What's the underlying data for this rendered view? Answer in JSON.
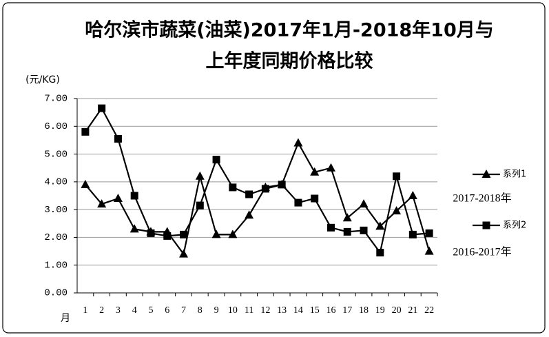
{
  "chart_data": {
    "type": "line",
    "title": [
      "哈尔滨市蔬菜(油菜)2017年1月-2018年10月与",
      "上年度同期价格比较"
    ],
    "y_label": "(元/KG)",
    "x_label": "月",
    "categories": [
      "1",
      "2",
      "3",
      "4",
      "5",
      "6",
      "7",
      "8",
      "9",
      "10",
      "11",
      "12",
      "13",
      "14",
      "15",
      "16",
      "17",
      "18",
      "19",
      "20",
      "21",
      "22"
    ],
    "series": [
      {
        "name": "系列1",
        "color": "#000000",
        "marker": "triangle",
        "annotation": "2017-2018年",
        "values": [
          3.9,
          3.2,
          3.4,
          2.3,
          2.2,
          2.2,
          1.4,
          4.2,
          2.1,
          2.1,
          2.8,
          3.8,
          3.9,
          5.4,
          4.35,
          4.5,
          2.7,
          3.2,
          2.4,
          2.95,
          3.5,
          1.5
        ]
      },
      {
        "name": "系列2",
        "color": "#000000",
        "marker": "square",
        "annotation": "2016-2017年",
        "values": [
          5.8,
          6.65,
          5.55,
          3.5,
          2.15,
          2.05,
          2.1,
          3.15,
          4.8,
          3.8,
          3.55,
          3.75,
          3.9,
          3.25,
          3.4,
          2.35,
          2.2,
          2.25,
          1.45,
          4.2,
          2.1,
          2.15
        ]
      }
    ],
    "ylim": [
      0,
      7
    ],
    "yticks": [
      {
        "value": 0,
        "label": "0.00"
      },
      {
        "value": 1,
        "label": "1.00"
      },
      {
        "value": 2,
        "label": "2.00"
      },
      {
        "value": 3,
        "label": "3.00"
      },
      {
        "value": 4,
        "label": "4.00"
      },
      {
        "value": 5,
        "label": "5.00"
      },
      {
        "value": 6,
        "label": "6.00"
      },
      {
        "value": 7,
        "label": "7.00"
      }
    ],
    "grid": true,
    "legend": "right"
  }
}
